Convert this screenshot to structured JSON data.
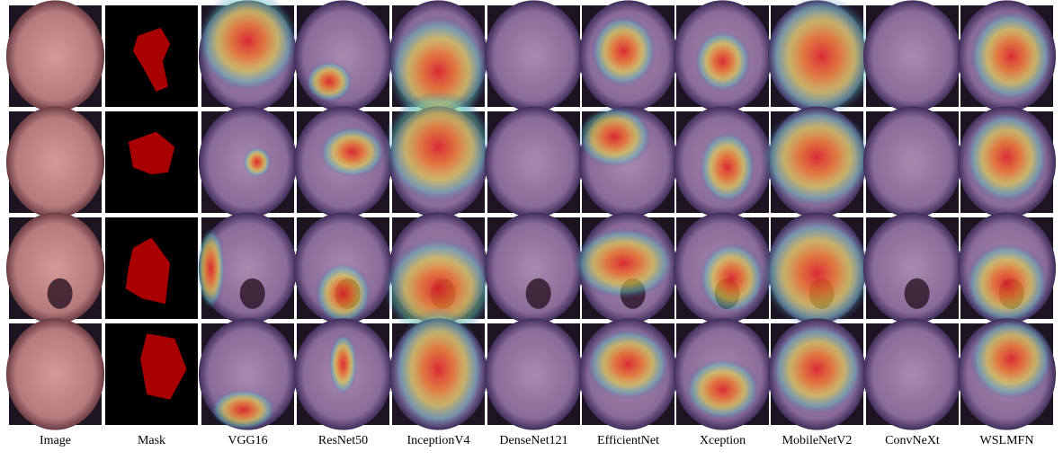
{
  "columns": [
    "Image",
    "Mask",
    "VGG16",
    "ResNet50",
    "InceptionV4",
    "DenseNet121",
    "EfficientNet",
    "Xception",
    "MobileNetV2",
    "ConvNeXt",
    "WSLMFN"
  ]
}
